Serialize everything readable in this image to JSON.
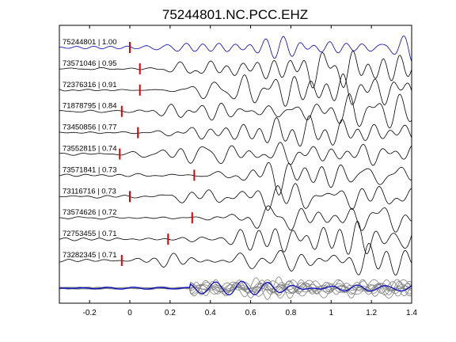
{
  "chart_data": {
    "type": "line",
    "title": "75244801.NC.PCC.EHZ",
    "xlabel": "",
    "ylabel": "",
    "xlim": [
      -0.35,
      1.4
    ],
    "x_ticks": [
      -0.2,
      0,
      0.2,
      0.4,
      0.6,
      0.8,
      1,
      1.2,
      1.4
    ],
    "x_tick_labels": [
      "-0.2",
      "0",
      "0.2",
      "0.4",
      "0.6",
      "0.8",
      "1",
      "1.2",
      "1.4"
    ],
    "grid": false,
    "colors": {
      "reference": "#0000cc",
      "trace": "#000000",
      "pick": "#dd0000",
      "stack": "#808080"
    },
    "traces": [
      {
        "label": "75244801 | 1.00",
        "pick_time": 0.0,
        "reference": true
      },
      {
        "label": "73571046 | 0.95",
        "pick_time": 0.05
      },
      {
        "label": "72376316 | 0.91",
        "pick_time": 0.05
      },
      {
        "label": "71878795 | 0.84",
        "pick_time": -0.04
      },
      {
        "label": "73450856 | 0.77",
        "pick_time": 0.04
      },
      {
        "label": "73552815 | 0.74",
        "pick_time": -0.05
      },
      {
        "label": "73571841 | 0.73",
        "pick_time": 0.32
      },
      {
        "label": "73116716 | 0.73",
        "pick_time": 0.0
      },
      {
        "label": "73574626 | 0.72",
        "pick_time": 0.31
      },
      {
        "label": "72753455 | 0.71",
        "pick_time": 0.19
      },
      {
        "label": "73282345 | 0.71",
        "pick_time": -0.04
      }
    ],
    "stack": {
      "description_in_plot": false
    }
  }
}
